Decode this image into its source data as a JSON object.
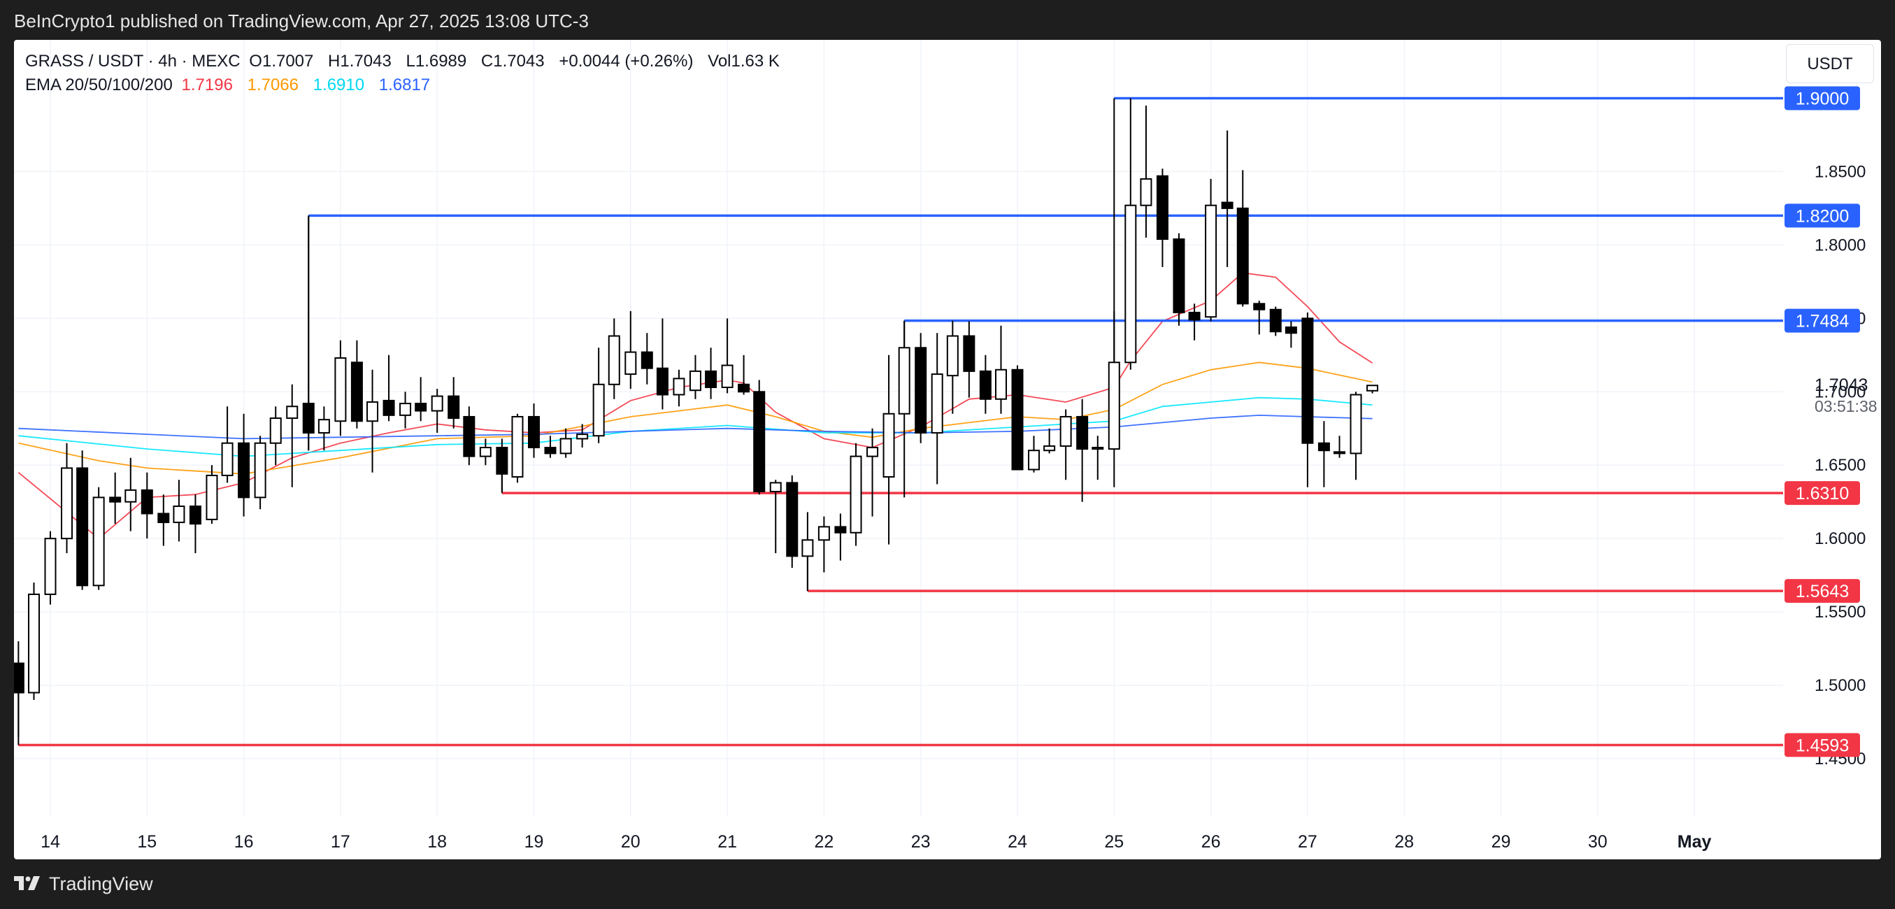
{
  "header": {
    "publisher_line": "BeInCrypto1 published on TradingView.com, Apr 27, 2025 13:08 UTC-3"
  },
  "legend": {
    "symbol": "GRASS / USDT · 4h · MEXC",
    "open_label": "O",
    "open": "1.7007",
    "high_label": "H",
    "high": "1.7043",
    "low_label": "L",
    "low": "1.6989",
    "close_label": "C",
    "close": "1.7043",
    "change": "+0.0044 (+0.26%)",
    "vol_label": "Vol",
    "vol": "1.63 K",
    "ema_label": "EMA 20/50/100/200",
    "ema20": "1.7196",
    "ema50": "1.7066",
    "ema100": "1.6910",
    "ema200": "1.6817"
  },
  "currency_button": "USDT",
  "footer": {
    "brand": "TradingView"
  },
  "colors": {
    "up_candle": "#ffffff",
    "down_candle": "#000000",
    "resistance": "#2962ff",
    "support": "#f23645",
    "ema20": "#f23645",
    "ema50": "#ff9800",
    "ema100": "#00e5ff",
    "ema200": "#2962ff"
  },
  "chart_data": {
    "type": "candlestick",
    "title": "GRASS / USDT · 4h · MEXC",
    "ylim": [
      1.43,
      1.935
    ],
    "y_ticks": [
      "1.4500",
      "1.5000",
      "1.5500",
      "1.6000",
      "1.6500",
      "1.7000",
      "1.7500",
      "1.8000",
      "1.8500"
    ],
    "x_ticks": [
      {
        "label": "14",
        "day": 0
      },
      {
        "label": "15",
        "day": 1
      },
      {
        "label": "16",
        "day": 2
      },
      {
        "label": "17",
        "day": 3
      },
      {
        "label": "18",
        "day": 4
      },
      {
        "label": "19",
        "day": 5
      },
      {
        "label": "20",
        "day": 6
      },
      {
        "label": "21",
        "day": 7
      },
      {
        "label": "22",
        "day": 8
      },
      {
        "label": "23",
        "day": 9
      },
      {
        "label": "24",
        "day": 10
      },
      {
        "label": "25",
        "day": 11
      },
      {
        "label": "26",
        "day": 12
      },
      {
        "label": "27",
        "day": 13
      },
      {
        "label": "28",
        "day": 14
      },
      {
        "label": "29",
        "day": 15
      },
      {
        "label": "30",
        "day": 16
      },
      {
        "label": "May",
        "day": 17
      }
    ],
    "current_price": {
      "value": 1.7043,
      "label": "1.7043",
      "countdown": "03:51:38"
    },
    "levels": [
      {
        "value": 1.9,
        "label": "1.9000",
        "kind": "resistance",
        "start_day": 11.0
      },
      {
        "value": 1.82,
        "label": "1.8200",
        "kind": "resistance",
        "start_day": 2.67
      },
      {
        "value": 1.7484,
        "label": "1.7484",
        "kind": "resistance",
        "start_day": 8.83
      },
      {
        "value": 1.631,
        "label": "1.6310",
        "kind": "support",
        "start_day": 4.67
      },
      {
        "value": 1.5643,
        "label": "1.5643",
        "kind": "support",
        "start_day": 7.83
      },
      {
        "value": 1.4593,
        "label": "1.4593",
        "kind": "support",
        "start_day": -0.33
      }
    ],
    "candles": [
      {
        "t": -0.33,
        "o": 1.515,
        "h": 1.53,
        "l": 1.465,
        "c": 1.495
      },
      {
        "t": -0.17,
        "o": 1.495,
        "h": 1.57,
        "l": 1.49,
        "c": 1.562
      },
      {
        "t": 0.0,
        "o": 1.562,
        "h": 1.605,
        "l": 1.555,
        "c": 1.6
      },
      {
        "t": 0.17,
        "o": 1.6,
        "h": 1.665,
        "l": 1.59,
        "c": 1.648
      },
      {
        "t": 0.33,
        "o": 1.648,
        "h": 1.66,
        "l": 1.565,
        "c": 1.568
      },
      {
        "t": 0.5,
        "o": 1.568,
        "h": 1.635,
        "l": 1.565,
        "c": 1.628
      },
      {
        "t": 0.67,
        "o": 1.628,
        "h": 1.645,
        "l": 1.61,
        "c": 1.625
      },
      {
        "t": 0.83,
        "o": 1.625,
        "h": 1.655,
        "l": 1.605,
        "c": 1.633
      },
      {
        "t": 1.0,
        "o": 1.633,
        "h": 1.645,
        "l": 1.6,
        "c": 1.617
      },
      {
        "t": 1.17,
        "o": 1.617,
        "h": 1.63,
        "l": 1.595,
        "c": 1.611
      },
      {
        "t": 1.33,
        "o": 1.611,
        "h": 1.64,
        "l": 1.598,
        "c": 1.622
      },
      {
        "t": 1.5,
        "o": 1.622,
        "h": 1.63,
        "l": 1.59,
        "c": 1.61
      },
      {
        "t": 1.67,
        "o": 1.613,
        "h": 1.65,
        "l": 1.61,
        "c": 1.643
      },
      {
        "t": 1.83,
        "o": 1.643,
        "h": 1.69,
        "l": 1.638,
        "c": 1.665
      },
      {
        "t": 2.0,
        "o": 1.665,
        "h": 1.685,
        "l": 1.615,
        "c": 1.628
      },
      {
        "t": 2.17,
        "o": 1.628,
        "h": 1.67,
        "l": 1.62,
        "c": 1.665
      },
      {
        "t": 2.33,
        "o": 1.665,
        "h": 1.69,
        "l": 1.65,
        "c": 1.682
      },
      {
        "t": 2.5,
        "o": 1.682,
        "h": 1.705,
        "l": 1.635,
        "c": 1.69
      },
      {
        "t": 2.67,
        "o": 1.692,
        "h": 1.82,
        "l": 1.66,
        "c": 1.672
      },
      {
        "t": 2.83,
        "o": 1.672,
        "h": 1.69,
        "l": 1.66,
        "c": 1.681
      },
      {
        "t": 3.0,
        "o": 1.68,
        "h": 1.735,
        "l": 1.67,
        "c": 1.723
      },
      {
        "t": 3.17,
        "o": 1.72,
        "h": 1.735,
        "l": 1.675,
        "c": 1.68
      },
      {
        "t": 3.33,
        "o": 1.68,
        "h": 1.715,
        "l": 1.645,
        "c": 1.693
      },
      {
        "t": 3.5,
        "o": 1.694,
        "h": 1.725,
        "l": 1.68,
        "c": 1.684
      },
      {
        "t": 3.67,
        "o": 1.684,
        "h": 1.7,
        "l": 1.675,
        "c": 1.692
      },
      {
        "t": 3.83,
        "o": 1.692,
        "h": 1.71,
        "l": 1.68,
        "c": 1.687
      },
      {
        "t": 4.0,
        "o": 1.687,
        "h": 1.702,
        "l": 1.672,
        "c": 1.697
      },
      {
        "t": 4.17,
        "o": 1.697,
        "h": 1.71,
        "l": 1.675,
        "c": 1.682
      },
      {
        "t": 4.33,
        "o": 1.683,
        "h": 1.69,
        "l": 1.65,
        "c": 1.656
      },
      {
        "t": 4.5,
        "o": 1.656,
        "h": 1.668,
        "l": 1.65,
        "c": 1.662
      },
      {
        "t": 4.67,
        "o": 1.662,
        "h": 1.668,
        "l": 1.632,
        "c": 1.644
      },
      {
        "t": 4.83,
        "o": 1.642,
        "h": 1.685,
        "l": 1.638,
        "c": 1.683
      },
      {
        "t": 5.0,
        "o": 1.683,
        "h": 1.692,
        "l": 1.655,
        "c": 1.662
      },
      {
        "t": 5.17,
        "o": 1.662,
        "h": 1.67,
        "l": 1.655,
        "c": 1.658
      },
      {
        "t": 5.33,
        "o": 1.658,
        "h": 1.675,
        "l": 1.655,
        "c": 1.668
      },
      {
        "t": 5.5,
        "o": 1.668,
        "h": 1.678,
        "l": 1.662,
        "c": 1.671
      },
      {
        "t": 5.67,
        "o": 1.67,
        "h": 1.73,
        "l": 1.665,
        "c": 1.705
      },
      {
        "t": 5.83,
        "o": 1.705,
        "h": 1.75,
        "l": 1.695,
        "c": 1.738
      },
      {
        "t": 6.0,
        "o": 1.712,
        "h": 1.755,
        "l": 1.702,
        "c": 1.727
      },
      {
        "t": 6.17,
        "o": 1.727,
        "h": 1.74,
        "l": 1.705,
        "c": 1.716
      },
      {
        "t": 6.33,
        "o": 1.716,
        "h": 1.75,
        "l": 1.688,
        "c": 1.698
      },
      {
        "t": 6.5,
        "o": 1.698,
        "h": 1.715,
        "l": 1.69,
        "c": 1.709
      },
      {
        "t": 6.67,
        "o": 1.701,
        "h": 1.725,
        "l": 1.695,
        "c": 1.714
      },
      {
        "t": 6.83,
        "o": 1.714,
        "h": 1.73,
        "l": 1.695,
        "c": 1.703
      },
      {
        "t": 7.0,
        "o": 1.703,
        "h": 1.75,
        "l": 1.699,
        "c": 1.718
      },
      {
        "t": 7.17,
        "o": 1.705,
        "h": 1.725,
        "l": 1.698,
        "c": 1.7
      },
      {
        "t": 7.33,
        "o": 1.7,
        "h": 1.708,
        "l": 1.63,
        "c": 1.632
      },
      {
        "t": 7.5,
        "o": 1.632,
        "h": 1.64,
        "l": 1.59,
        "c": 1.638
      },
      {
        "t": 7.67,
        "o": 1.638,
        "h": 1.643,
        "l": 1.58,
        "c": 1.588
      },
      {
        "t": 7.83,
        "o": 1.588,
        "h": 1.618,
        "l": 1.5643,
        "c": 1.599
      },
      {
        "t": 8.0,
        "o": 1.599,
        "h": 1.615,
        "l": 1.577,
        "c": 1.608
      },
      {
        "t": 8.17,
        "o": 1.608,
        "h": 1.617,
        "l": 1.585,
        "c": 1.604
      },
      {
        "t": 8.33,
        "o": 1.604,
        "h": 1.665,
        "l": 1.595,
        "c": 1.656
      },
      {
        "t": 8.5,
        "o": 1.656,
        "h": 1.675,
        "l": 1.615,
        "c": 1.662
      },
      {
        "t": 8.67,
        "o": 1.642,
        "h": 1.725,
        "l": 1.596,
        "c": 1.685
      },
      {
        "t": 8.83,
        "o": 1.685,
        "h": 1.7484,
        "l": 1.628,
        "c": 1.73
      },
      {
        "t": 9.0,
        "o": 1.73,
        "h": 1.74,
        "l": 1.665,
        "c": 1.672
      },
      {
        "t": 9.17,
        "o": 1.672,
        "h": 1.74,
        "l": 1.637,
        "c": 1.712
      },
      {
        "t": 9.33,
        "o": 1.711,
        "h": 1.7484,
        "l": 1.685,
        "c": 1.738
      },
      {
        "t": 9.5,
        "o": 1.738,
        "h": 1.748,
        "l": 1.696,
        "c": 1.714
      },
      {
        "t": 9.67,
        "o": 1.714,
        "h": 1.725,
        "l": 1.685,
        "c": 1.695
      },
      {
        "t": 9.83,
        "o": 1.695,
        "h": 1.745,
        "l": 1.685,
        "c": 1.715
      },
      {
        "t": 10.0,
        "o": 1.715,
        "h": 1.718,
        "l": 1.647,
        "c": 1.647
      },
      {
        "t": 10.17,
        "o": 1.647,
        "h": 1.67,
        "l": 1.645,
        "c": 1.66
      },
      {
        "t": 10.33,
        "o": 1.66,
        "h": 1.675,
        "l": 1.658,
        "c": 1.663
      },
      {
        "t": 10.5,
        "o": 1.663,
        "h": 1.688,
        "l": 1.64,
        "c": 1.683
      },
      {
        "t": 10.67,
        "o": 1.683,
        "h": 1.695,
        "l": 1.625,
        "c": 1.661
      },
      {
        "t": 10.83,
        "o": 1.661,
        "h": 1.67,
        "l": 1.64,
        "c": 1.662
      },
      {
        "t": 11.0,
        "o": 1.661,
        "h": 1.755,
        "l": 1.635,
        "c": 1.72
      },
      {
        "t": 11.17,
        "o": 1.72,
        "h": 1.9,
        "l": 1.715,
        "c": 1.827
      },
      {
        "t": 11.33,
        "o": 1.827,
        "h": 1.895,
        "l": 1.805,
        "c": 1.845
      },
      {
        "t": 11.5,
        "o": 1.847,
        "h": 1.852,
        "l": 1.785,
        "c": 1.804
      },
      {
        "t": 11.67,
        "o": 1.804,
        "h": 1.808,
        "l": 1.745,
        "c": 1.754
      },
      {
        "t": 11.83,
        "o": 1.754,
        "h": 1.76,
        "l": 1.735,
        "c": 1.749
      },
      {
        "t": 12.0,
        "o": 1.751,
        "h": 1.845,
        "l": 1.748,
        "c": 1.827
      },
      {
        "t": 12.17,
        "o": 1.829,
        "h": 1.878,
        "l": 1.785,
        "c": 1.825
      },
      {
        "t": 12.33,
        "o": 1.825,
        "h": 1.851,
        "l": 1.758,
        "c": 1.76
      },
      {
        "t": 12.5,
        "o": 1.76,
        "h": 1.762,
        "l": 1.739,
        "c": 1.756
      },
      {
        "t": 12.67,
        "o": 1.756,
        "h": 1.758,
        "l": 1.738,
        "c": 1.741
      },
      {
        "t": 12.83,
        "o": 1.744,
        "h": 1.748,
        "l": 1.73,
        "c": 1.74
      },
      {
        "t": 13.0,
        "o": 1.75,
        "h": 1.754,
        "l": 1.635,
        "c": 1.665
      },
      {
        "t": 13.17,
        "o": 1.665,
        "h": 1.68,
        "l": 1.635,
        "c": 1.66
      },
      {
        "t": 13.33,
        "o": 1.659,
        "h": 1.67,
        "l": 1.655,
        "c": 1.658
      },
      {
        "t": 13.5,
        "o": 1.658,
        "h": 1.7,
        "l": 1.64,
        "c": 1.698
      },
      {
        "t": 13.67,
        "o": 1.7007,
        "h": 1.7043,
        "l": 1.6989,
        "c": 1.7043
      }
    ],
    "ema_series": [
      {
        "name": "EMA 20",
        "color_key": "ema20",
        "points": [
          [
            -0.33,
            1.645
          ],
          [
            0.5,
            1.6
          ],
          [
            1.0,
            1.628
          ],
          [
            1.5,
            1.63
          ],
          [
            2.0,
            1.638
          ],
          [
            2.5,
            1.655
          ],
          [
            3.0,
            1.665
          ],
          [
            3.5,
            1.672
          ],
          [
            4.0,
            1.678
          ],
          [
            4.5,
            1.674
          ],
          [
            5.0,
            1.672
          ],
          [
            5.5,
            1.674
          ],
          [
            6.0,
            1.694
          ],
          [
            6.5,
            1.703
          ],
          [
            7.0,
            1.708
          ],
          [
            7.17,
            1.706
          ],
          [
            7.5,
            1.686
          ],
          [
            8.0,
            1.668
          ],
          [
            8.5,
            1.662
          ],
          [
            9.0,
            1.676
          ],
          [
            9.5,
            1.695
          ],
          [
            10.0,
            1.698
          ],
          [
            10.5,
            1.693
          ],
          [
            11.0,
            1.703
          ],
          [
            11.17,
            1.721
          ],
          [
            11.5,
            1.748
          ],
          [
            12.0,
            1.762
          ],
          [
            12.33,
            1.781
          ],
          [
            12.67,
            1.778
          ],
          [
            13.0,
            1.758
          ],
          [
            13.33,
            1.734
          ],
          [
            13.67,
            1.7196
          ]
        ]
      },
      {
        "name": "EMA 50",
        "color_key": "ema50",
        "points": [
          [
            -0.33,
            1.665
          ],
          [
            0.5,
            1.653
          ],
          [
            1.0,
            1.648
          ],
          [
            2.0,
            1.644
          ],
          [
            3.0,
            1.655
          ],
          [
            4.0,
            1.668
          ],
          [
            5.0,
            1.67
          ],
          [
            6.0,
            1.683
          ],
          [
            7.0,
            1.691
          ],
          [
            7.5,
            1.683
          ],
          [
            8.0,
            1.673
          ],
          [
            8.5,
            1.669
          ],
          [
            9.0,
            1.675
          ],
          [
            10.0,
            1.683
          ],
          [
            10.5,
            1.681
          ],
          [
            11.0,
            1.688
          ],
          [
            11.5,
            1.705
          ],
          [
            12.0,
            1.715
          ],
          [
            12.5,
            1.72
          ],
          [
            13.0,
            1.716
          ],
          [
            13.67,
            1.7066
          ]
        ]
      },
      {
        "name": "EMA 100",
        "color_key": "ema100",
        "points": [
          [
            -0.33,
            1.67
          ],
          [
            1.0,
            1.661
          ],
          [
            2.0,
            1.656
          ],
          [
            3.0,
            1.66
          ],
          [
            4.0,
            1.664
          ],
          [
            5.0,
            1.665
          ],
          [
            6.0,
            1.673
          ],
          [
            7.0,
            1.677
          ],
          [
            8.0,
            1.672
          ],
          [
            9.0,
            1.672
          ],
          [
            10.0,
            1.676
          ],
          [
            11.0,
            1.68
          ],
          [
            11.5,
            1.69
          ],
          [
            12.0,
            1.693
          ],
          [
            12.5,
            1.696
          ],
          [
            13.0,
            1.695
          ],
          [
            13.67,
            1.691
          ]
        ]
      },
      {
        "name": "EMA 200",
        "color_key": "ema200",
        "points": [
          [
            -0.33,
            1.675
          ],
          [
            1.0,
            1.671
          ],
          [
            2.0,
            1.668
          ],
          [
            3.0,
            1.669
          ],
          [
            4.0,
            1.67
          ],
          [
            5.0,
            1.671
          ],
          [
            6.0,
            1.673
          ],
          [
            7.0,
            1.675
          ],
          [
            8.0,
            1.673
          ],
          [
            9.0,
            1.672
          ],
          [
            10.0,
            1.673
          ],
          [
            11.0,
            1.676
          ],
          [
            12.0,
            1.682
          ],
          [
            12.5,
            1.684
          ],
          [
            13.0,
            1.683
          ],
          [
            13.67,
            1.6817
          ]
        ]
      }
    ]
  }
}
